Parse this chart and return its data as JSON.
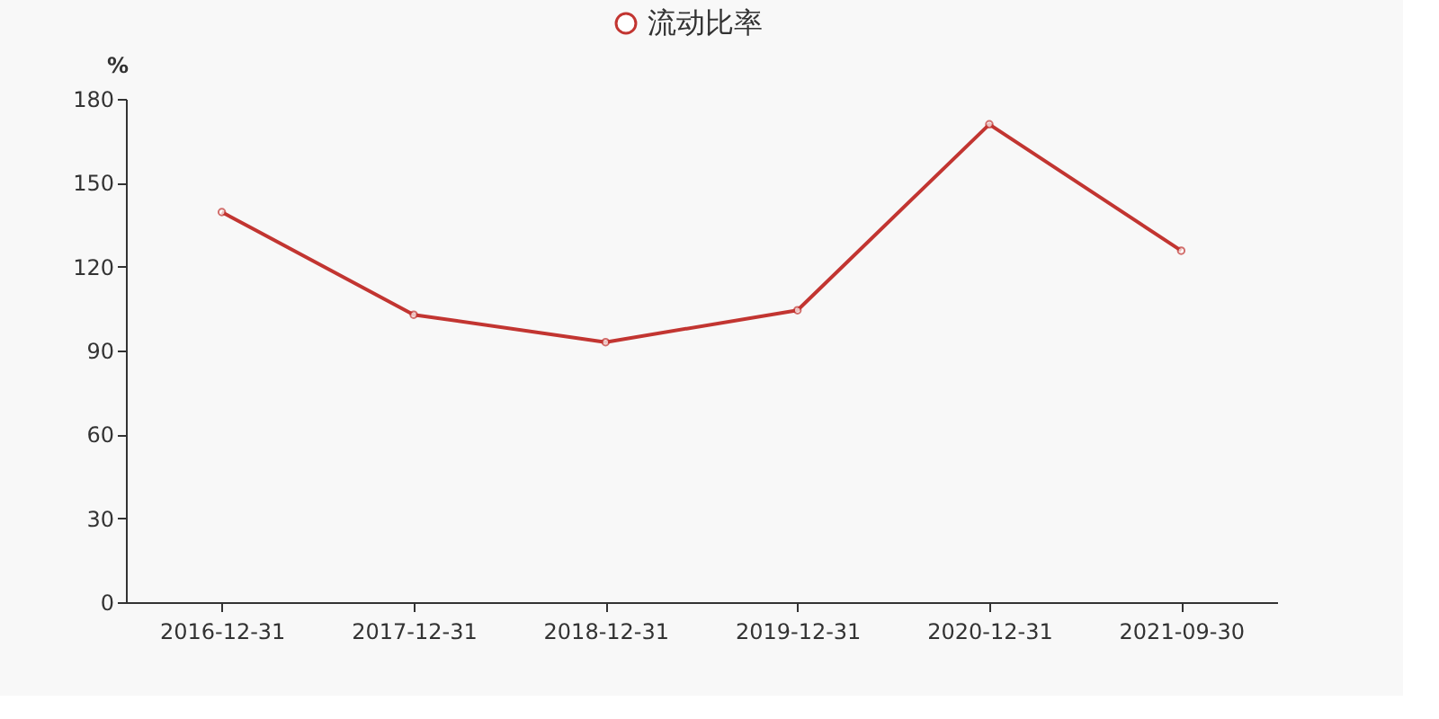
{
  "chart_data": {
    "type": "line",
    "ylabel": "%",
    "categories": [
      "2016-12-31",
      "2017-12-31",
      "2018-12-31",
      "2019-12-31",
      "2020-12-31",
      "2021-09-30"
    ],
    "series": [
      {
        "name": "流动比率",
        "color": "#c23531",
        "values": [
          139.5,
          102.8,
          93.0,
          104.4,
          170.9,
          125.7
        ]
      }
    ],
    "ylim": [
      0,
      180
    ],
    "yticks": [
      0,
      30,
      60,
      90,
      120,
      150,
      180
    ],
    "grid": false,
    "legend": "top",
    "marker": "circle",
    "line_style": "solid"
  }
}
